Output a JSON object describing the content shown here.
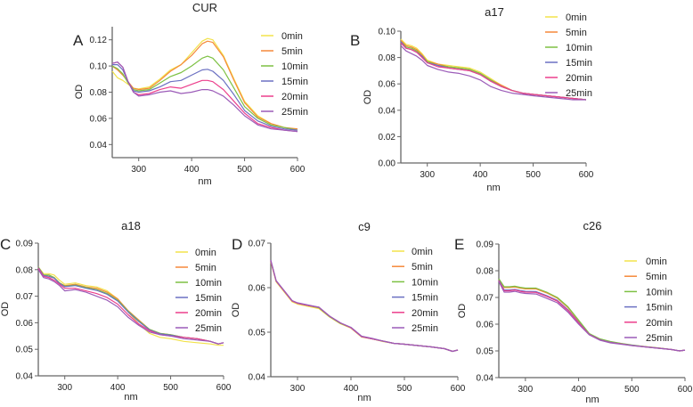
{
  "series_colors": {
    "0min": "#f2e24a",
    "5min": "#f5893a",
    "10min": "#7dc143",
    "15min": "#6b70c2",
    "20min": "#ec3f8c",
    "25min": "#9b5bb8"
  },
  "chart_data": [
    {
      "type": "line",
      "panel_label": "A",
      "title": "CUR",
      "xlabel": "nm",
      "ylabel": "OD",
      "xlim": [
        250,
        600
      ],
      "ylim": [
        0.03,
        0.13
      ],
      "xticks": [
        300,
        400,
        500,
        600
      ],
      "yticks": [
        0.04,
        0.06,
        0.08,
        0.1,
        0.12
      ],
      "ytick_labels": [
        "0.04",
        "0.06",
        "0.08",
        "0.10",
        "0.12"
      ],
      "grid": false,
      "legend": "top-right",
      "x": [
        250,
        260,
        270,
        280,
        290,
        300,
        320,
        340,
        360,
        380,
        400,
        420,
        430,
        440,
        460,
        480,
        500,
        525,
        550,
        575,
        600
      ],
      "series": [
        {
          "name": "0min",
          "values": [
            0.096,
            0.091,
            0.089,
            0.086,
            0.083,
            0.0825,
            0.084,
            0.09,
            0.097,
            0.101,
            0.11,
            0.119,
            0.121,
            0.12,
            0.108,
            0.09,
            0.073,
            0.062,
            0.056,
            0.053,
            0.051
          ]
        },
        {
          "name": "5min",
          "values": [
            0.1,
            0.097,
            0.093,
            0.088,
            0.083,
            0.082,
            0.083,
            0.089,
            0.096,
            0.101,
            0.108,
            0.117,
            0.119,
            0.118,
            0.107,
            0.089,
            0.072,
            0.061,
            0.056,
            0.053,
            0.052
          ]
        },
        {
          "name": "10min",
          "values": [
            0.1,
            0.098,
            0.094,
            0.087,
            0.082,
            0.081,
            0.082,
            0.087,
            0.092,
            0.095,
            0.1,
            0.106,
            0.1075,
            0.106,
            0.097,
            0.083,
            0.069,
            0.06,
            0.055,
            0.053,
            0.051
          ]
        },
        {
          "name": "15min",
          "values": [
            0.101,
            0.101,
            0.097,
            0.088,
            0.081,
            0.08,
            0.081,
            0.084,
            0.088,
            0.089,
            0.093,
            0.097,
            0.0975,
            0.096,
            0.089,
            0.078,
            0.066,
            0.058,
            0.054,
            0.052,
            0.051
          ]
        },
        {
          "name": "20min",
          "values": [
            0.102,
            0.103,
            0.099,
            0.088,
            0.08,
            0.078,
            0.079,
            0.082,
            0.084,
            0.083,
            0.086,
            0.089,
            0.089,
            0.088,
            0.082,
            0.073,
            0.064,
            0.056,
            0.053,
            0.051,
            0.05
          ]
        },
        {
          "name": "25min",
          "values": [
            0.102,
            0.103,
            0.099,
            0.088,
            0.08,
            0.077,
            0.078,
            0.08,
            0.081,
            0.079,
            0.08,
            0.082,
            0.082,
            0.081,
            0.077,
            0.07,
            0.062,
            0.055,
            0.052,
            0.051,
            0.05
          ]
        }
      ]
    },
    {
      "type": "line",
      "panel_label": "B",
      "title": "a17",
      "xlabel": "nm",
      "ylabel": "OD",
      "xlim": [
        250,
        600
      ],
      "ylim": [
        0,
        0.1
      ],
      "xticks": [
        300,
        400,
        500,
        600
      ],
      "yticks": [
        0,
        0.02,
        0.04,
        0.06,
        0.08,
        0.1
      ],
      "ytick_labels": [
        "0.00",
        "0.02",
        "0.04",
        "0.06",
        "0.08",
        "0.10"
      ],
      "grid": false,
      "legend": "top-right",
      "x": [
        250,
        260,
        270,
        280,
        290,
        300,
        320,
        340,
        360,
        380,
        400,
        420,
        440,
        460,
        480,
        500,
        525,
        550,
        575,
        600
      ],
      "series": [
        {
          "name": "0min",
          "values": [
            0.094,
            0.09,
            0.089,
            0.087,
            0.083,
            0.078,
            0.075,
            0.074,
            0.073,
            0.072,
            0.069,
            0.064,
            0.059,
            0.055,
            0.053,
            0.052,
            0.051,
            0.05,
            0.049,
            0.048
          ]
        },
        {
          "name": "5min",
          "values": [
            0.093,
            0.089,
            0.088,
            0.086,
            0.082,
            0.077,
            0.075,
            0.073,
            0.072,
            0.071,
            0.068,
            0.063,
            0.059,
            0.055,
            0.053,
            0.052,
            0.051,
            0.05,
            0.049,
            0.048
          ]
        },
        {
          "name": "10min",
          "values": [
            0.092,
            0.088,
            0.087,
            0.085,
            0.081,
            0.077,
            0.074,
            0.073,
            0.072,
            0.071,
            0.068,
            0.063,
            0.058,
            0.055,
            0.053,
            0.052,
            0.051,
            0.05,
            0.049,
            0.048
          ]
        },
        {
          "name": "15min",
          "values": [
            0.092,
            0.087,
            0.086,
            0.084,
            0.081,
            0.076,
            0.074,
            0.072,
            0.071,
            0.07,
            0.067,
            0.062,
            0.058,
            0.055,
            0.053,
            0.052,
            0.051,
            0.05,
            0.049,
            0.048
          ]
        },
        {
          "name": "20min",
          "values": [
            0.091,
            0.087,
            0.086,
            0.084,
            0.08,
            0.076,
            0.073,
            0.072,
            0.071,
            0.07,
            0.067,
            0.062,
            0.058,
            0.055,
            0.053,
            0.052,
            0.051,
            0.05,
            0.049,
            0.048
          ]
        },
        {
          "name": "25min",
          "values": [
            0.089,
            0.085,
            0.083,
            0.081,
            0.078,
            0.074,
            0.071,
            0.069,
            0.068,
            0.066,
            0.063,
            0.058,
            0.055,
            0.053,
            0.052,
            0.051,
            0.05,
            0.049,
            0.048,
            0.048
          ]
        }
      ]
    },
    {
      "type": "line",
      "panel_label": "C",
      "title": "a18",
      "xlabel": "nm",
      "ylabel": "OD",
      "xlim": [
        250,
        600
      ],
      "ylim": [
        0.04,
        0.09
      ],
      "xticks": [
        300,
        400,
        500,
        600
      ],
      "yticks": [
        0.04,
        0.05,
        0.06,
        0.07,
        0.08,
        0.09
      ],
      "ytick_labels": [
        "0.04",
        "0.05",
        "0.06",
        "0.07",
        "0.08",
        "0.09"
      ],
      "grid": false,
      "legend": "right",
      "x": [
        250,
        260,
        270,
        280,
        290,
        300,
        320,
        340,
        360,
        380,
        400,
        420,
        440,
        460,
        480,
        500,
        525,
        550,
        575,
        590,
        600
      ],
      "series": [
        {
          "name": "0min",
          "values": [
            0.081,
            0.0785,
            0.0785,
            0.078,
            0.076,
            0.0745,
            0.075,
            0.074,
            0.0735,
            0.072,
            0.069,
            0.064,
            0.0595,
            0.056,
            0.0545,
            0.054,
            0.053,
            0.0525,
            0.052,
            0.0515,
            0.0515
          ]
        },
        {
          "name": "5min",
          "values": [
            0.081,
            0.078,
            0.078,
            0.077,
            0.075,
            0.074,
            0.0745,
            0.0735,
            0.073,
            0.0715,
            0.069,
            0.0645,
            0.061,
            0.0575,
            0.056,
            0.0555,
            0.0545,
            0.054,
            0.053,
            0.052,
            0.0525
          ]
        },
        {
          "name": "10min",
          "values": [
            0.081,
            0.078,
            0.078,
            0.077,
            0.075,
            0.0738,
            0.0742,
            0.0733,
            0.0725,
            0.071,
            0.0685,
            0.0643,
            0.0607,
            0.0575,
            0.056,
            0.0555,
            0.0545,
            0.054,
            0.053,
            0.052,
            0.0525
          ]
        },
        {
          "name": "15min",
          "values": [
            0.0808,
            0.0778,
            0.0775,
            0.0768,
            0.0748,
            0.0736,
            0.074,
            0.073,
            0.0722,
            0.0707,
            0.0682,
            0.064,
            0.0604,
            0.0573,
            0.0558,
            0.0553,
            0.0545,
            0.054,
            0.053,
            0.052,
            0.0525
          ]
        },
        {
          "name": "20min",
          "values": [
            0.0805,
            0.0775,
            0.077,
            0.076,
            0.0745,
            0.073,
            0.073,
            0.072,
            0.071,
            0.0695,
            0.067,
            0.063,
            0.0595,
            0.057,
            0.0555,
            0.055,
            0.0545,
            0.054,
            0.053,
            0.052,
            0.0525
          ]
        },
        {
          "name": "25min",
          "values": [
            0.08,
            0.077,
            0.0765,
            0.0755,
            0.074,
            0.072,
            0.0725,
            0.0715,
            0.07,
            0.0685,
            0.066,
            0.062,
            0.059,
            0.0565,
            0.0555,
            0.055,
            0.054,
            0.0535,
            0.053,
            0.052,
            0.0525
          ]
        }
      ]
    },
    {
      "type": "line",
      "panel_label": "D",
      "title": "c9",
      "xlabel": "nm",
      "ylabel": "OD",
      "xlim": [
        250,
        600
      ],
      "ylim": [
        0.04,
        0.07
      ],
      "xticks": [
        300,
        400,
        500,
        600
      ],
      "yticks": [
        0.04,
        0.05,
        0.06,
        0.07
      ],
      "ytick_labels": [
        "0.04",
        "0.05",
        "0.06",
        "0.07"
      ],
      "grid": false,
      "legend": "top-right",
      "x": [
        250,
        260,
        270,
        280,
        290,
        300,
        320,
        340,
        360,
        380,
        400,
        420,
        440,
        460,
        480,
        500,
        525,
        550,
        575,
        590,
        600
      ],
      "series": [
        {
          "name": "0min",
          "values": [
            0.0658,
            0.0613,
            0.0598,
            0.0583,
            0.0568,
            0.0563,
            0.0558,
            0.0553,
            0.0534,
            0.0519,
            0.0509,
            0.0489,
            0.0485,
            0.0479,
            0.0475,
            0.0473,
            0.047,
            0.0467,
            0.0463,
            0.0457,
            0.046
          ]
        },
        {
          "name": "5min",
          "values": [
            0.066,
            0.0615,
            0.06,
            0.0585,
            0.057,
            0.0565,
            0.056,
            0.0555,
            0.0535,
            0.052,
            0.051,
            0.049,
            0.0485,
            0.048,
            0.0475,
            0.0473,
            0.047,
            0.0467,
            0.0463,
            0.0457,
            0.046
          ]
        },
        {
          "name": "10min",
          "values": [
            0.066,
            0.0615,
            0.06,
            0.0585,
            0.057,
            0.0565,
            0.056,
            0.0555,
            0.0535,
            0.052,
            0.051,
            0.049,
            0.0485,
            0.048,
            0.0475,
            0.0473,
            0.047,
            0.0467,
            0.0463,
            0.0457,
            0.046
          ]
        },
        {
          "name": "15min",
          "values": [
            0.066,
            0.0615,
            0.06,
            0.0585,
            0.057,
            0.0565,
            0.056,
            0.0556,
            0.0536,
            0.0521,
            0.051,
            0.049,
            0.0485,
            0.048,
            0.0475,
            0.0473,
            0.047,
            0.0467,
            0.0463,
            0.0457,
            0.046
          ]
        },
        {
          "name": "20min",
          "values": [
            0.066,
            0.0615,
            0.06,
            0.0585,
            0.057,
            0.0565,
            0.056,
            0.0556,
            0.0536,
            0.0521,
            0.051,
            0.049,
            0.0485,
            0.048,
            0.0475,
            0.0473,
            0.047,
            0.0467,
            0.0463,
            0.0457,
            0.046
          ]
        },
        {
          "name": "25min",
          "values": [
            0.0662,
            0.0616,
            0.0601,
            0.0586,
            0.0571,
            0.0566,
            0.0561,
            0.0556,
            0.0536,
            0.0521,
            0.0511,
            0.0491,
            0.0486,
            0.048,
            0.0475,
            0.0473,
            0.047,
            0.0467,
            0.0463,
            0.0457,
            0.046
          ]
        }
      ]
    },
    {
      "type": "line",
      "panel_label": "E",
      "title": "c26",
      "xlabel": "nm",
      "ylabel": "OD",
      "xlim": [
        250,
        600
      ],
      "ylim": [
        0.04,
        0.09
      ],
      "xticks": [
        300,
        400,
        500,
        600
      ],
      "yticks": [
        0.04,
        0.05,
        0.06,
        0.07,
        0.08,
        0.09
      ],
      "ytick_labels": [
        "0.04",
        "0.05",
        "0.06",
        "0.07",
        "0.08",
        "0.09"
      ],
      "grid": false,
      "legend": "right",
      "x": [
        250,
        260,
        270,
        280,
        290,
        300,
        320,
        340,
        360,
        380,
        400,
        420,
        440,
        460,
        480,
        500,
        525,
        550,
        575,
        590,
        600
      ],
      "series": [
        {
          "name": "0min",
          "values": [
            0.0768,
            0.0738,
            0.0738,
            0.074,
            0.0736,
            0.0733,
            0.0733,
            0.0718,
            0.0698,
            0.0663,
            0.0613,
            0.0564,
            0.0544,
            0.0534,
            0.0527,
            0.0521,
            0.0516,
            0.0511,
            0.0505,
            0.05,
            0.0503
          ]
        },
        {
          "name": "5min",
          "values": [
            0.0768,
            0.0737,
            0.0737,
            0.0739,
            0.0735,
            0.0732,
            0.0732,
            0.0717,
            0.0697,
            0.0662,
            0.0612,
            0.0564,
            0.0544,
            0.0534,
            0.0527,
            0.0521,
            0.0516,
            0.0511,
            0.0505,
            0.05,
            0.0503
          ]
        },
        {
          "name": "10min",
          "values": [
            0.077,
            0.074,
            0.074,
            0.0742,
            0.0738,
            0.0735,
            0.0735,
            0.072,
            0.07,
            0.0665,
            0.0615,
            0.0565,
            0.0545,
            0.0535,
            0.0528,
            0.0522,
            0.0516,
            0.0511,
            0.0505,
            0.05,
            0.0503
          ]
        },
        {
          "name": "15min",
          "values": [
            0.0765,
            0.0728,
            0.0728,
            0.073,
            0.0726,
            0.0723,
            0.0722,
            0.0707,
            0.0689,
            0.0654,
            0.0607,
            0.0562,
            0.0542,
            0.0532,
            0.0526,
            0.0521,
            0.0515,
            0.051,
            0.0505,
            0.05,
            0.0503
          ]
        },
        {
          "name": "20min",
          "values": [
            0.0763,
            0.0725,
            0.0725,
            0.0728,
            0.0723,
            0.072,
            0.0719,
            0.0704,
            0.0686,
            0.0651,
            0.0605,
            0.0561,
            0.0541,
            0.0531,
            0.0526,
            0.052,
            0.0515,
            0.051,
            0.0505,
            0.05,
            0.0503
          ]
        },
        {
          "name": "25min",
          "values": [
            0.076,
            0.072,
            0.072,
            0.0723,
            0.0718,
            0.0715,
            0.0713,
            0.0697,
            0.068,
            0.0645,
            0.06,
            0.056,
            0.054,
            0.053,
            0.0525,
            0.052,
            0.0515,
            0.051,
            0.0505,
            0.05,
            0.0503
          ]
        }
      ]
    }
  ]
}
